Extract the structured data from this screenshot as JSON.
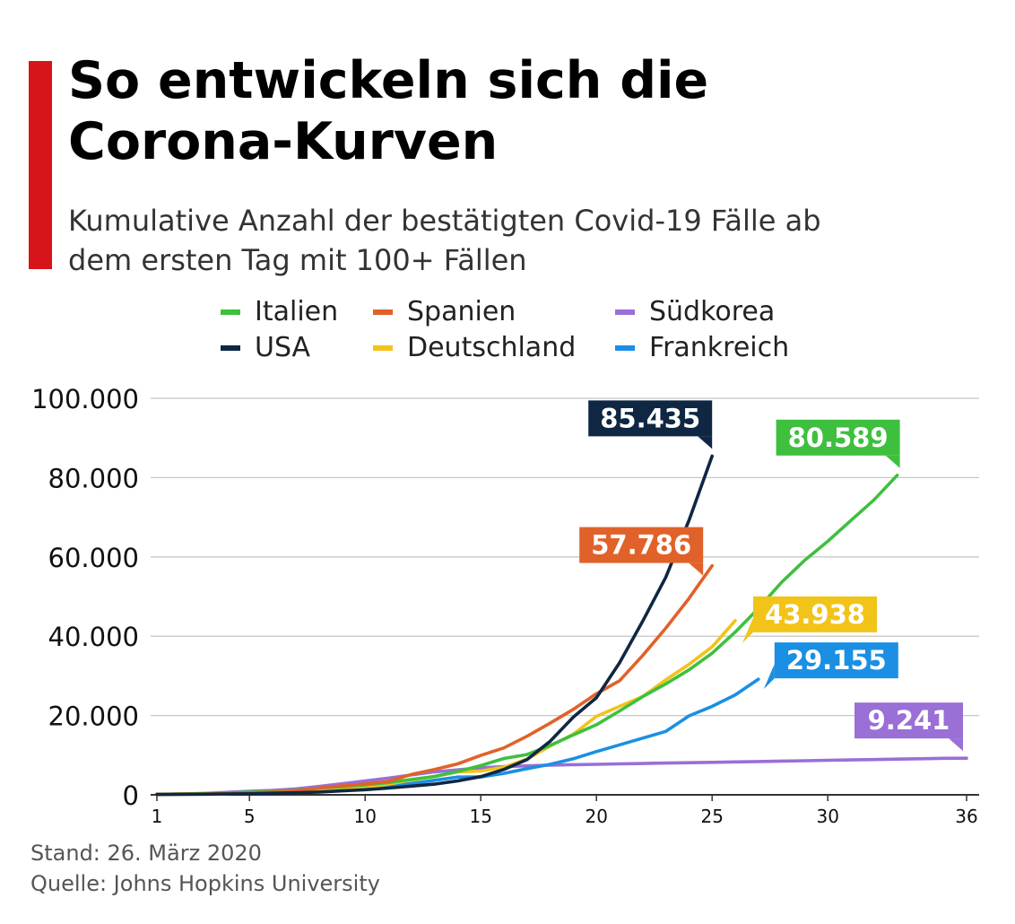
{
  "title_line1": "So entwickeln sich die",
  "title_line2": "Corona-Kurven",
  "subtitle_line1": "Kumulative Anzahl der bestätigten Covid-19 Fälle ab",
  "subtitle_line2": "dem ersten Tag mit 100+ Fällen",
  "footer": {
    "stand": "Stand: 26. März 2020",
    "quelle": "Quelle: Johns Hopkins University"
  },
  "chart_data": {
    "type": "line",
    "title": "So entwickeln sich die Corona-Kurven",
    "subtitle": "Kumulative Anzahl der bestätigten Covid-19 Fälle ab dem ersten Tag mit 100+ Fällen",
    "xlabel": "",
    "ylabel": "",
    "xlim": [
      1,
      36
    ],
    "ylim": [
      0,
      100000
    ],
    "x_ticks": [
      1,
      5,
      10,
      15,
      20,
      25,
      30,
      36
    ],
    "y_ticks": [
      0,
      20000,
      40000,
      60000,
      80000,
      100000
    ],
    "y_tick_labels": [
      "0",
      "20.000",
      "40.000",
      "60.000",
      "80.000",
      "100.000"
    ],
    "grid": "horizontal",
    "legend": "top",
    "series": [
      {
        "name": "Italien",
        "color": "#3ec03e",
        "end_label": "80.589",
        "points": [
          [
            1,
            150
          ],
          [
            2,
            220
          ],
          [
            3,
            320
          ],
          [
            4,
            450
          ],
          [
            5,
            650
          ],
          [
            6,
            890
          ],
          [
            7,
            1130
          ],
          [
            8,
            1690
          ],
          [
            9,
            2040
          ],
          [
            10,
            2500
          ],
          [
            11,
            3090
          ],
          [
            12,
            3860
          ],
          [
            13,
            4640
          ],
          [
            14,
            5880
          ],
          [
            15,
            7380
          ],
          [
            16,
            9170
          ],
          [
            17,
            10150
          ],
          [
            18,
            12460
          ],
          [
            19,
            15110
          ],
          [
            20,
            17660
          ],
          [
            21,
            21160
          ],
          [
            22,
            24750
          ],
          [
            23,
            27980
          ],
          [
            24,
            31510
          ],
          [
            25,
            35710
          ],
          [
            26,
            41040
          ],
          [
            27,
            47020
          ],
          [
            28,
            53580
          ],
          [
            29,
            59140
          ],
          [
            30,
            63930
          ],
          [
            31,
            69180
          ],
          [
            32,
            74390
          ],
          [
            33,
            80589
          ]
        ]
      },
      {
        "name": "Spanien",
        "color": "#e0622a",
        "end_label": "57.786",
        "points": [
          [
            1,
            120
          ],
          [
            2,
            170
          ],
          [
            3,
            230
          ],
          [
            4,
            370
          ],
          [
            5,
            500
          ],
          [
            6,
            670
          ],
          [
            7,
            1030
          ],
          [
            8,
            1690
          ],
          [
            9,
            2280
          ],
          [
            10,
            2740
          ],
          [
            11,
            3390
          ],
          [
            12,
            5130
          ],
          [
            13,
            6390
          ],
          [
            14,
            7800
          ],
          [
            15,
            9940
          ],
          [
            16,
            11830
          ],
          [
            17,
            14770
          ],
          [
            18,
            18080
          ],
          [
            19,
            21570
          ],
          [
            20,
            25500
          ],
          [
            21,
            28780
          ],
          [
            22,
            35140
          ],
          [
            23,
            42060
          ],
          [
            24,
            49520
          ],
          [
            25,
            57786
          ]
        ]
      },
      {
        "name": "Südkorea",
        "color": "#9a6fd6",
        "end_label": "9.241",
        "points": [
          [
            1,
            100
          ],
          [
            2,
            200
          ],
          [
            3,
            350
          ],
          [
            4,
            600
          ],
          [
            5,
            900
          ],
          [
            6,
            1100
          ],
          [
            7,
            1500
          ],
          [
            8,
            2100
          ],
          [
            9,
            2800
          ],
          [
            10,
            3500
          ],
          [
            11,
            4200
          ],
          [
            12,
            5000
          ],
          [
            13,
            5800
          ],
          [
            14,
            6300
          ],
          [
            15,
            6800
          ],
          [
            16,
            7100
          ],
          [
            17,
            7300
          ],
          [
            18,
            7500
          ],
          [
            19,
            7600
          ],
          [
            20,
            7700
          ],
          [
            21,
            7800
          ],
          [
            22,
            7900
          ],
          [
            23,
            8000
          ],
          [
            24,
            8100
          ],
          [
            25,
            8200
          ],
          [
            26,
            8300
          ],
          [
            27,
            8400
          ],
          [
            28,
            8500
          ],
          [
            29,
            8600
          ],
          [
            30,
            8700
          ],
          [
            31,
            8800
          ],
          [
            32,
            8900
          ],
          [
            33,
            9000
          ],
          [
            34,
            9100
          ],
          [
            35,
            9200
          ],
          [
            36,
            9241
          ]
        ]
      },
      {
        "name": "USA",
        "color": "#0f2742",
        "end_label": "85.435",
        "points": [
          [
            1,
            100
          ],
          [
            2,
            120
          ],
          [
            3,
            160
          ],
          [
            4,
            220
          ],
          [
            5,
            280
          ],
          [
            6,
            400
          ],
          [
            7,
            520
          ],
          [
            8,
            710
          ],
          [
            9,
            990
          ],
          [
            10,
            1300
          ],
          [
            11,
            1700
          ],
          [
            12,
            2200
          ],
          [
            13,
            2700
          ],
          [
            14,
            3500
          ],
          [
            15,
            4600
          ],
          [
            16,
            6400
          ],
          [
            17,
            8900
          ],
          [
            18,
            13500
          ],
          [
            19,
            19600
          ],
          [
            20,
            24500
          ],
          [
            21,
            33300
          ],
          [
            22,
            43800
          ],
          [
            23,
            54900
          ],
          [
            24,
            69200
          ],
          [
            25,
            85435
          ]
        ]
      },
      {
        "name": "Deutschland",
        "color": "#f2c318",
        "end_label": "43.938",
        "points": [
          [
            1,
            130
          ],
          [
            2,
            160
          ],
          [
            3,
            200
          ],
          [
            4,
            240
          ],
          [
            5,
            400
          ],
          [
            6,
            640
          ],
          [
            7,
            800
          ],
          [
            8,
            1100
          ],
          [
            9,
            1300
          ],
          [
            10,
            1900
          ],
          [
            11,
            2700
          ],
          [
            12,
            3700
          ],
          [
            13,
            4600
          ],
          [
            14,
            5800
          ],
          [
            15,
            6000
          ],
          [
            16,
            7000
          ],
          [
            17,
            9000
          ],
          [
            18,
            12300
          ],
          [
            19,
            15300
          ],
          [
            20,
            19800
          ],
          [
            21,
            22300
          ],
          [
            22,
            24800
          ],
          [
            23,
            29000
          ],
          [
            24,
            32900
          ],
          [
            25,
            37300
          ],
          [
            26,
            43938
          ]
        ]
      },
      {
        "name": "Frankreich",
        "color": "#1a8fe3",
        "end_label": "29.155",
        "points": [
          [
            1,
            130
          ],
          [
            2,
            190
          ],
          [
            3,
            210
          ],
          [
            4,
            280
          ],
          [
            5,
            420
          ],
          [
            6,
            650
          ],
          [
            7,
            950
          ],
          [
            8,
            1130
          ],
          [
            9,
            1420
          ],
          [
            10,
            1780
          ],
          [
            11,
            2280
          ],
          [
            12,
            2880
          ],
          [
            13,
            3660
          ],
          [
            14,
            4480
          ],
          [
            15,
            4500
          ],
          [
            16,
            5400
          ],
          [
            17,
            6600
          ],
          [
            18,
            7700
          ],
          [
            19,
            9100
          ],
          [
            20,
            10900
          ],
          [
            21,
            12600
          ],
          [
            22,
            14300
          ],
          [
            23,
            16000
          ],
          [
            24,
            19900
          ],
          [
            25,
            22300
          ],
          [
            26,
            25200
          ],
          [
            27,
            29155
          ]
        ]
      }
    ]
  }
}
